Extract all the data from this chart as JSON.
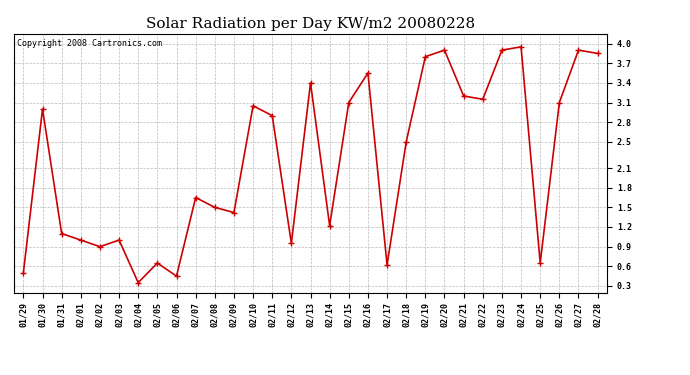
{
  "title": "Solar Radiation per Day KW/m2 20080228",
  "copyright": "Copyright 2008 Cartronics.com",
  "dates": [
    "01/29",
    "01/30",
    "01/31",
    "02/01",
    "02/02",
    "02/03",
    "02/04",
    "02/05",
    "02/06",
    "02/07",
    "02/08",
    "02/09",
    "02/10",
    "02/11",
    "02/12",
    "02/13",
    "02/14",
    "02/15",
    "02/16",
    "02/17",
    "02/18",
    "02/19",
    "02/20",
    "02/21",
    "02/22",
    "02/23",
    "02/24",
    "02/25",
    "02/26",
    "02/27",
    "02/28"
  ],
  "values": [
    0.5,
    3.0,
    1.1,
    1.0,
    0.9,
    1.0,
    0.35,
    0.65,
    0.45,
    1.65,
    1.5,
    1.42,
    3.05,
    2.9,
    0.95,
    3.4,
    1.22,
    3.1,
    3.55,
    0.62,
    2.5,
    3.8,
    3.9,
    3.2,
    3.15,
    3.9,
    3.95,
    0.65,
    3.1,
    3.9,
    3.85
  ],
  "line_color": "#cc0000",
  "marker": "+",
  "marker_size": 4,
  "marker_linewidth": 1.0,
  "line_width": 1.2,
  "background_color": "#ffffff",
  "plot_bg_color": "#ffffff",
  "grid_color": "#bbbbbb",
  "ylim": [
    0.2,
    4.15
  ],
  "yticks": [
    0.3,
    0.6,
    0.9,
    1.2,
    1.5,
    1.8,
    2.1,
    2.5,
    2.8,
    3.1,
    3.4,
    3.7,
    4.0
  ],
  "title_fontsize": 11,
  "tick_fontsize": 6,
  "copyright_fontsize": 6,
  "fig_width": 6.9,
  "fig_height": 3.75,
  "dpi": 100
}
